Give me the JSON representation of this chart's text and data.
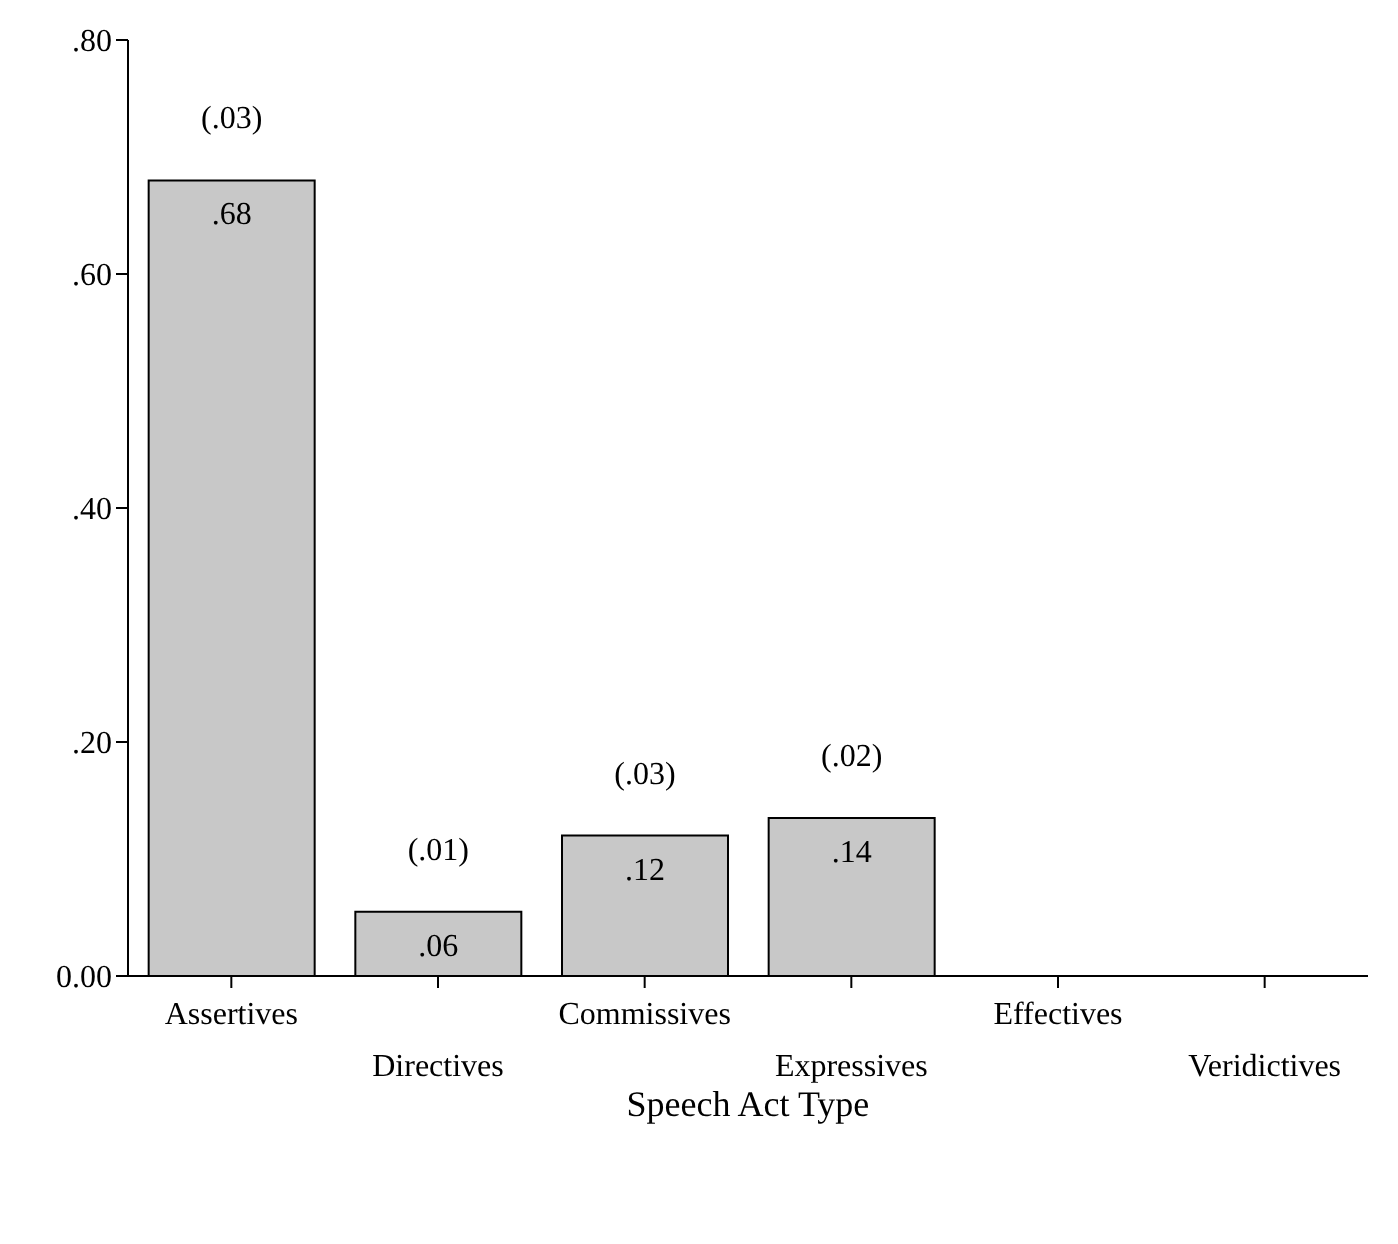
{
  "chart_data": {
    "type": "bar",
    "xlabel": "Speech Act Type",
    "categories": [
      "Assertives",
      "Directives",
      "Commissives",
      "Expressives",
      "Effectives",
      "Veridictives"
    ],
    "values": [
      0.68,
      0.055,
      0.12,
      0.135,
      0,
      0
    ],
    "value_labels": [
      ".68",
      ".06",
      ".12",
      ".14",
      null,
      null
    ],
    "color": "#c8c8c8",
    "ylim": [
      0,
      0.8
    ],
    "yticks": [
      {
        "value": 0,
        "label": "0.00"
      },
      {
        "value": 0.2,
        "label": ".20"
      },
      {
        "value": 0.4,
        "label": ".40"
      },
      {
        "value": 0.6,
        "label": ".60"
      },
      {
        "value": 0.8,
        "label": ".80"
      }
    ],
    "annotations": [
      "(.03)",
      "(.01)",
      "(.03)",
      "(.02)"
    ],
    "grid": false,
    "legend": false
  }
}
